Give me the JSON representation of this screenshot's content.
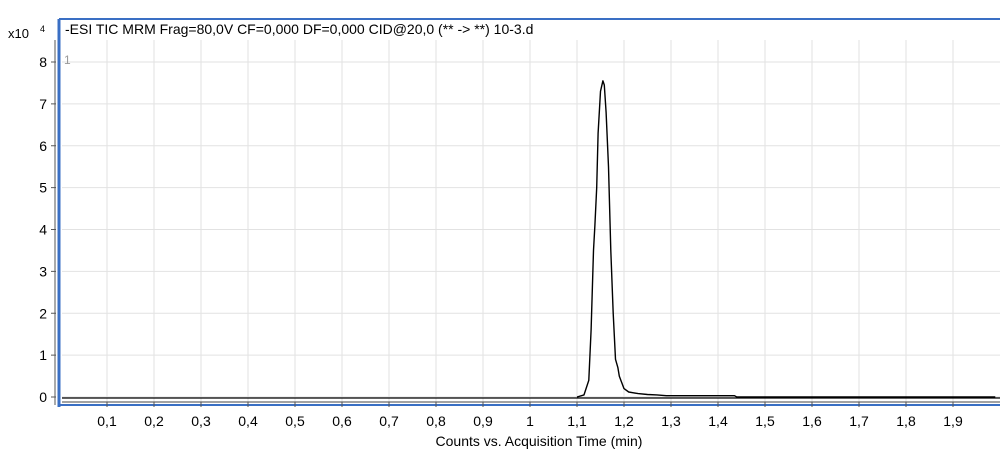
{
  "chart_data": {
    "type": "line",
    "title": "-ESI TIC MRM Frag=80,0V CF=0,000 DF=0,000 CID@20,0 (** -> **) 10-3.d",
    "panel_index": "1",
    "ylabel_multiplier": "x10",
    "ylabel_exponent": "4",
    "xlabel": "Counts vs. Acquisition Time (min)",
    "xlim": [
      0,
      1.99
    ],
    "ylim": [
      -0.15,
      8.3
    ],
    "x_ticks": [
      0.1,
      0.2,
      0.3,
      0.4,
      0.5,
      0.6,
      0.7,
      0.8,
      0.9,
      1.0,
      1.1,
      1.2,
      1.3,
      1.4,
      1.5,
      1.6,
      1.7,
      1.8,
      1.9
    ],
    "x_tick_labels": [
      "0,1",
      "0,2",
      "0,3",
      "0,4",
      "0,5",
      "0,6",
      "0,7",
      "0,8",
      "0,9",
      "1",
      "1,1",
      "1,2",
      "1,3",
      "1,4",
      "1,5",
      "1,6",
      "1,7",
      "1,8",
      "1,9"
    ],
    "y_ticks": [
      0,
      1,
      2,
      3,
      4,
      5,
      6,
      7,
      8
    ],
    "y_tick_labels": [
      "0",
      "1",
      "2",
      "3",
      "4",
      "5",
      "6",
      "7",
      "8"
    ],
    "grid": true,
    "colors": {
      "line": "#000000",
      "frame": "#3a6fc4",
      "grid": "#e2e2e2",
      "baseline": "#000000"
    },
    "series": [
      {
        "x": [
          1.1,
          1.115,
          1.125,
          1.13,
          1.135,
          1.138,
          1.142,
          1.145,
          1.15,
          1.155,
          1.158,
          1.162,
          1.167,
          1.172,
          1.177,
          1.182,
          1.187,
          1.19,
          1.195,
          1.2,
          1.21,
          1.22,
          1.23,
          1.25,
          1.27,
          1.28,
          1.29,
          1.3,
          1.35,
          1.4,
          1.435,
          1.44,
          1.5,
          1.99
        ],
        "y": [
          0,
          0.05,
          0.4,
          1.6,
          3.5,
          4.1,
          5.0,
          6.3,
          7.3,
          7.55,
          7.45,
          6.8,
          5.5,
          3.5,
          2.0,
          0.9,
          0.7,
          0.5,
          0.35,
          0.2,
          0.12,
          0.1,
          0.08,
          0.06,
          0.05,
          0.04,
          0.03,
          0.03,
          0.03,
          0.03,
          0.03,
          0.0,
          0.0,
          0.0
        ]
      }
    ]
  }
}
